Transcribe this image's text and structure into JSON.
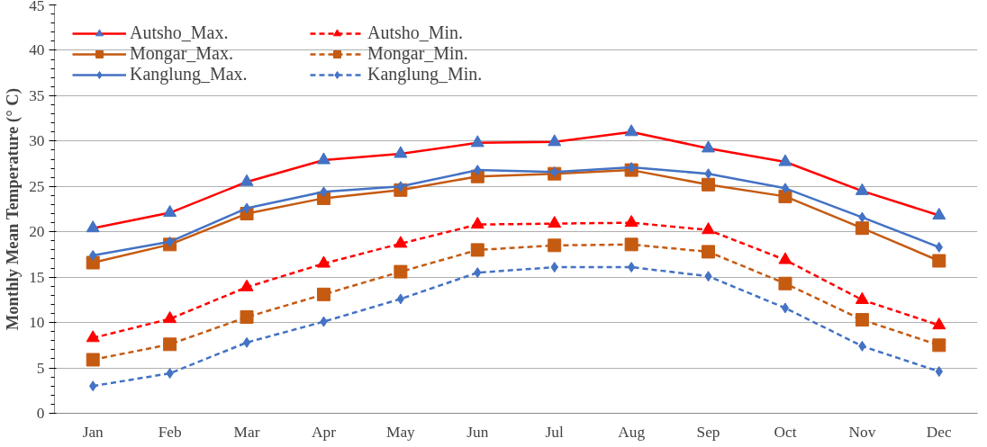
{
  "chart_data": {
    "type": "line",
    "ylabel": "Monthly Mean Temperature (° C)",
    "categories": [
      "Jan",
      "Feb",
      "Mar",
      "Apr",
      "May",
      "Jun",
      "Jul",
      "Aug",
      "Sep",
      "Oct",
      "Nov",
      "Dec"
    ],
    "ylim": [
      0,
      45
    ],
    "yticks": [
      0,
      5,
      10,
      15,
      20,
      25,
      30,
      35,
      40,
      45
    ],
    "grid": "y",
    "legend": "top left",
    "series": [
      {
        "name": "Autsho_Max.",
        "color": "#ff0000",
        "colors": [
          "#4472c4",
          "#4472c4",
          "#4472c4",
          "#4472c4",
          "#4472c4",
          "#4472c4",
          "#4472c4",
          "#4472c4",
          "#4472c4",
          "#4472c4",
          "#4472c4",
          "#4472c4"
        ],
        "marker": "triangle",
        "line_style": "solid",
        "values": [
          20.4,
          22.1,
          25.5,
          27.9,
          28.6,
          29.8,
          29.9,
          31.0,
          29.2,
          27.7,
          24.5,
          21.8
        ]
      },
      {
        "name": "Mongar_Max.",
        "color": "#c55a11",
        "marker": "square",
        "line_style": "solid",
        "values": [
          16.6,
          18.6,
          22.0,
          23.7,
          24.6,
          26.1,
          26.4,
          26.8,
          25.2,
          23.9,
          20.4,
          16.8
        ]
      },
      {
        "name": "Kanglung_Max.",
        "color": "#4472c4",
        "marker": "diamond",
        "line_style": "solid",
        "values": [
          17.4,
          18.9,
          22.6,
          24.4,
          25.0,
          26.8,
          26.6,
          27.1,
          26.4,
          24.8,
          21.6,
          18.3
        ]
      },
      {
        "name": "Autsho_Min.",
        "color": "#ff0000",
        "marker": "triangle",
        "line_style": "dashed",
        "values": [
          8.3,
          10.4,
          13.9,
          16.5,
          18.7,
          20.8,
          20.9,
          21.0,
          20.2,
          16.9,
          12.5,
          9.7
        ]
      },
      {
        "name": "Mongar_Min.",
        "color": "#c55a11",
        "marker": "square",
        "line_style": "dashed",
        "values": [
          5.9,
          7.6,
          10.6,
          13.1,
          15.6,
          18.0,
          18.5,
          18.6,
          17.8,
          14.3,
          10.3,
          7.5
        ]
      },
      {
        "name": "Kanglung_Min.",
        "color": "#4472c4",
        "marker": "diamond",
        "line_style": "dashed",
        "values": [
          3.0,
          4.4,
          7.8,
          10.1,
          12.6,
          15.5,
          16.1,
          16.1,
          15.1,
          11.6,
          7.4,
          4.6
        ]
      }
    ]
  }
}
